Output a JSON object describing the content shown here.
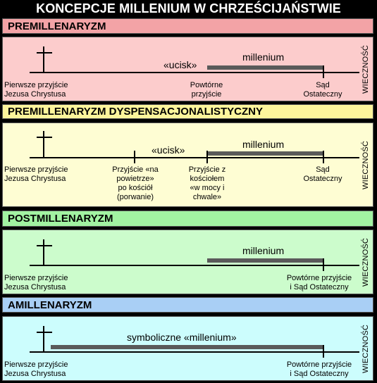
{
  "title": "KONCEPCJE MILLENIUM W CHRZEŚCIJAŃSTWIE",
  "eternity_label": "WIECZNOŚĆ",
  "panels": [
    {
      "name": "PREMILLENARYZM",
      "header_color": "#f3a3a6",
      "panel_color": "#fccccc",
      "first_coming": [
        "Pierwsze przyjście",
        "Jezusa Chrystusa"
      ],
      "tribulation": "«ucisk»",
      "millennium": "millenium",
      "second_coming": [
        "Powtórne",
        "przyjście"
      ],
      "judgment": [
        "Sąd",
        "Ostateczny"
      ]
    },
    {
      "name": "PREMILLENARYZM DYSPENSACJONALISTYCZNY",
      "header_color": "#fdf59c",
      "panel_color": "#fefdd3",
      "first_coming": [
        "Pierwsze przyjście",
        "Jezusa Chrystusa"
      ],
      "rapture": [
        "Przyjście «na",
        "powietrze»",
        "po kościół",
        "(porwanie)"
      ],
      "tribulation": "«ucisk»",
      "millennium": "millenium",
      "second_coming": [
        "Przyjście z",
        "kościołem",
        "«w mocy i",
        "chwale»"
      ],
      "judgment": [
        "Sąd",
        "Ostateczny"
      ]
    },
    {
      "name": "POSTMILLENARYZM",
      "header_color": "#a2f3a2",
      "panel_color": "#ccfccc",
      "first_coming": [
        "Pierwsze przyjście",
        "Jezusa Chrystusa"
      ],
      "millennium": "millenium",
      "second_coming_judgment": [
        "Powtórne przyjście",
        "i Sąd Ostateczny"
      ]
    },
    {
      "name": "AMILLENARYZM",
      "header_color": "#a9cff5",
      "panel_color": "#ccfdfd",
      "first_coming": [
        "Pierwsze przyjście",
        "Jezusa Chrystusa"
      ],
      "millennium": "symboliczne «millenium»",
      "second_coming_judgment": [
        "Powtórne przyjście",
        "i Sąd Ostateczny"
      ]
    }
  ]
}
